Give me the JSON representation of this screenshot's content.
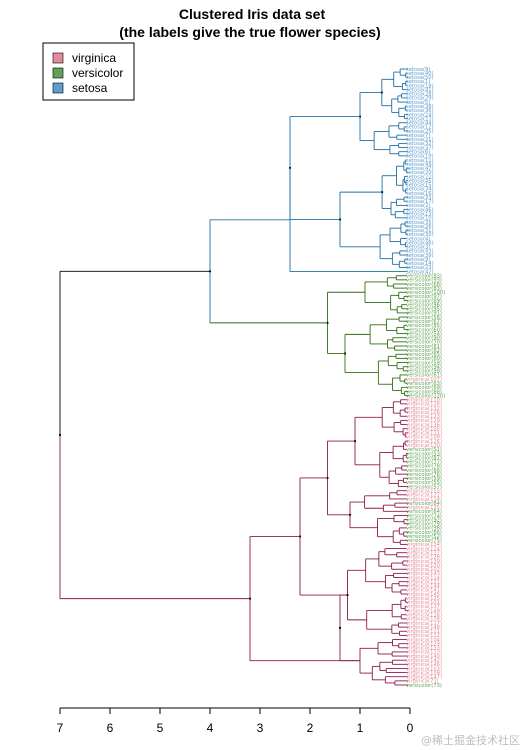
{
  "chart_data": {
    "type": "dendrogram",
    "title": "Clustered Iris data set",
    "subtitle": "(the labels give the true flower species)",
    "x_ticks": [
      "7",
      "6",
      "5",
      "4",
      "3",
      "2",
      "1",
      "0"
    ],
    "x_range": [
      7,
      0
    ],
    "legend": {
      "placement": "top-left",
      "entries": [
        {
          "label": "virginica",
          "color": "#e58a9a"
        },
        {
          "label": "versicolor",
          "color": "#63a255"
        },
        {
          "label": "setosa",
          "color": "#5d9ed1"
        }
      ]
    },
    "branch_colors": {
      "setosa": "#1f6fa3",
      "versicolor": "#2f6e12",
      "virginica": "#8b1a4a",
      "root": "#000000"
    },
    "merge_heights": {
      "root": 7.0,
      "setosa_versicolor": 4.0,
      "setosa": 2.4,
      "versicolor": 1.65,
      "virginica": 3.2,
      "virginica_upper": 2.2
    },
    "leaves": {
      "setosa": [
        "setosa(8)",
        "setosa(40)",
        "setosa(50)",
        "setosa(1)",
        "setosa(18)",
        "setosa(41)",
        "setosa(28)",
        "setosa(29)",
        "setosa(5)",
        "setosa(38)",
        "setosa(36)",
        "setosa(24)",
        "setosa(27)",
        "setosa(44)",
        "setosa(12)",
        "setosa(25)",
        "setosa(7)",
        "setosa(21)",
        "setosa(32)",
        "setosa(37)",
        "setosa(6)",
        "setosa(19)",
        "setosa(11)",
        "setosa(49)",
        "setosa(47)",
        "setosa(20)",
        "setosa(22)",
        "setosa(45)",
        "setosa(15)",
        "setosa(34)",
        "setosa(16)",
        "setosa(33)",
        "setosa(17)",
        "setosa(2)",
        "setosa(46)",
        "setosa(13)",
        "setosa(10)",
        "setosa(35)",
        "setosa(26)",
        "setosa(31)",
        "setosa(30)",
        "setosa(4)",
        "setosa(48)",
        "setosa(3)",
        "setosa(43)",
        "setosa(39)",
        "setosa(9)",
        "setosa(14)",
        "setosa(23)",
        "setosa(42)"
      ],
      "versicolor": [
        "versicolor(83)",
        "versicolor(93)",
        "versicolor(68)",
        "versicolor(83)",
        "versicolor(100)",
        "versicolor(97)",
        "versicolor(89)",
        "versicolor(96)",
        "versicolor(95)",
        "versicolor(91)",
        "versicolor(56)",
        "versicolor(67)",
        "versicolor(85)",
        "versicolor(60)",
        "versicolor(54)",
        "versicolor(90)",
        "versicolor(70)",
        "versicolor(81)",
        "versicolor(82)",
        "versicolor(65)",
        "versicolor(80)",
        "versicolor(58)",
        "versicolor(94)",
        "versicolor(99)",
        "versicolor(61)",
        "virginica(107)",
        "versicolor(63)",
        "versicolor(69)",
        "versicolor(88)",
        "versicolor(120)"
      ],
      "virginica": [
        "virginica(110)",
        "virginica(118)",
        "virginica(132)",
        "virginica(106)",
        "virginica(123)",
        "virginica(119)",
        "virginica(136)",
        "virginica(105)",
        "virginica(131)",
        "virginica(108)",
        "virginica(126)",
        "virginica(130)",
        "versicolor(51)",
        "versicolor(53)",
        "versicolor(87)",
        "versicolor(77)",
        "versicolor(78)",
        "versicolor(66)",
        "versicolor(76)",
        "versicolor(59)",
        "versicolor(55)",
        "versicolor(57)",
        "virginica(115)",
        "virginica(122)",
        "virginica(114)",
        "versicolor(84)",
        "virginica(135)",
        "versicolor(64)",
        "versicolor(74)",
        "versicolor(92)",
        "versicolor(79)",
        "versicolor(98)",
        "versicolor(86)",
        "versicolor(52)",
        "versicolor(75)",
        "virginica(134)",
        "virginica(124)",
        "virginica(127)",
        "virginica(128)",
        "virginica(139)",
        "virginica(150)",
        "virginica(102)",
        "virginica(143)",
        "virginica(114)",
        "virginica(121)",
        "virginica(144)",
        "virginica(141)",
        "virginica(145)",
        "virginica(125)",
        "virginica(101)",
        "virginica(137)",
        "virginica(149)",
        "virginica(116)",
        "virginica(138)",
        "virginica(117)",
        "virginica(148)",
        "virginica(111)",
        "virginica(112)",
        "virginica(104)",
        "virginica(129)",
        "virginica(133)",
        "virginica(113)",
        "virginica(140)",
        "virginica(142)",
        "virginica(146)",
        "virginica(103)",
        "virginica(109)",
        "virginica(147)",
        "virginica(71)",
        "versicolor(73)"
      ]
    }
  },
  "watermark": "@稀土掘金技术社区"
}
